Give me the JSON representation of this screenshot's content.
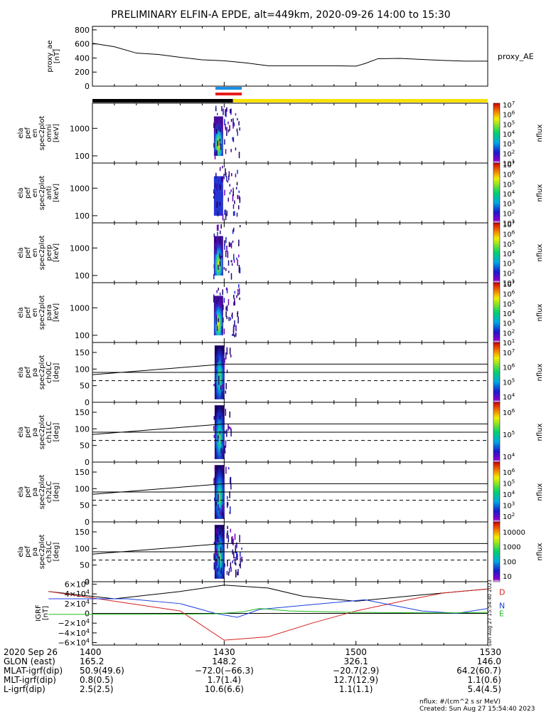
{
  "title": "PRELIMINARY ELFIN-A EPDE, alt=449km, 2020-09-26 14:00 to 15:30",
  "colors": {
    "orbit_bar_night": "#000000",
    "orbit_bar_day": "#f7e00a",
    "ibo_bar": "#e81c1c",
    "fast_bar": "#1b8fe8",
    "ae_line": "#000000",
    "grf_d": "#000000",
    "grf_n": "#1a3fe0",
    "grf_e": "#22bb22",
    "grf_r": "#d42020",
    "d_label": "#d42020",
    "n_label": "#1a3fe0",
    "e_label": "#22bb22"
  },
  "chart_data": [
    {
      "type": "line",
      "name": "proxy_ae",
      "ylabel": [
        "proxy_ae",
        "[nT]"
      ],
      "series_label": "proxy_AE",
      "ylim": [
        0,
        850
      ],
      "yticks": [
        "0",
        "200",
        "400",
        "600",
        "800"
      ],
      "ytick_values": [
        0,
        200,
        400,
        600,
        800
      ],
      "x": [
        0,
        5,
        10,
        15,
        20,
        25,
        30,
        35,
        40,
        45,
        50,
        55,
        60,
        62,
        65,
        70,
        75,
        80,
        85,
        90
      ],
      "values": [
        610,
        560,
        470,
        450,
        410,
        375,
        360,
        330,
        290,
        290,
        290,
        290,
        285,
        320,
        390,
        395,
        380,
        365,
        355,
        355
      ]
    },
    {
      "type": "heatmap",
      "name": "spec2plot_omni",
      "ylabel": [
        "ela",
        "pef",
        "en",
        "spec2plot",
        "omni",
        "[keV]"
      ],
      "yticks": [
        "1000",
        "100"
      ],
      "zlabel": "nflux",
      "ztick_exponents": [
        "1",
        "2",
        "3",
        "4",
        "5",
        "6",
        "7"
      ]
    },
    {
      "type": "heatmap",
      "name": "spec2plot_anti",
      "ylabel": [
        "ela",
        "pef",
        "en",
        "spec2plot",
        "anti",
        "[keV]"
      ],
      "yticks": [
        "1000",
        "100"
      ],
      "zlabel": "nflux",
      "ztick_exponents": [
        "1",
        "2",
        "3",
        "4",
        "5",
        "6",
        "7"
      ]
    },
    {
      "type": "heatmap",
      "name": "spec2plot_perp",
      "ylabel": [
        "ela",
        "pef",
        "en",
        "spec2plot",
        "perp",
        "[keV]"
      ],
      "yticks": [
        "1000",
        "100"
      ],
      "zlabel": "nflux",
      "ztick_exponents": [
        "1",
        "2",
        "3",
        "4",
        "5",
        "6",
        "7"
      ]
    },
    {
      "type": "heatmap",
      "name": "spec2plot_para",
      "ylabel": [
        "ela",
        "pef",
        "en",
        "spec2plot",
        "para",
        "[keV]"
      ],
      "yticks": [
        "1000",
        "100"
      ],
      "zlabel": "nflux",
      "ztick_exponents": [
        "1",
        "2",
        "3",
        "4",
        "5",
        "6",
        "7"
      ]
    },
    {
      "type": "heatmap",
      "name": "spec2plot_ch0LC",
      "ylabel": [
        "ela",
        "pef",
        "pa",
        "spec2plot",
        "ch0LC",
        "[deg]"
      ],
      "yticks": [
        "0",
        "50",
        "100",
        "150"
      ],
      "ylim": [
        0,
        180
      ],
      "zlabel": "nflux",
      "ztick_labels": [
        "10^4",
        "10^5",
        "10^6",
        "10^7"
      ]
    },
    {
      "type": "heatmap",
      "name": "spec2plot_ch1LC",
      "ylabel": [
        "ela",
        "pef",
        "pa",
        "spec2plot",
        "ch1LC",
        "[deg]"
      ],
      "yticks": [
        "0",
        "50",
        "100",
        "150"
      ],
      "ylim": [
        0,
        180
      ],
      "zlabel": "nflux",
      "ztick_labels": [
        "10^4",
        "10^5",
        "10^6"
      ]
    },
    {
      "type": "heatmap",
      "name": "spec2plot_ch2LC",
      "ylabel": [
        "ela",
        "pef",
        "pa",
        "spec2plot",
        "ch2LC",
        "[deg]"
      ],
      "yticks": [
        "0",
        "50",
        "100",
        "150"
      ],
      "ylim": [
        0,
        180
      ],
      "zlabel": "nflux",
      "ztick_labels": [
        "10^2",
        "10^3",
        "10^4",
        "10^5",
        "10^6"
      ]
    },
    {
      "type": "heatmap",
      "name": "spec2plot_ch3LC",
      "ylabel": [
        "ela",
        "pef",
        "pa",
        "spec2plot",
        "ch3LC",
        "[deg]"
      ],
      "yticks": [
        "0",
        "50",
        "100",
        "150"
      ],
      "ylim": [
        0,
        180
      ],
      "zlabel": "nflux",
      "ztick_labels": [
        "10",
        "100",
        "1000",
        "10000"
      ]
    },
    {
      "type": "line",
      "name": "IGRF",
      "ylabel": [
        "IGRF",
        "[nT]"
      ],
      "ylim": [
        -65000,
        65000
      ],
      "yticks": [
        "6×10⁴",
        "4×10⁴",
        "2×10⁴",
        "0",
        "−2×10⁴",
        "−4×10⁴",
        "−6×10⁴"
      ],
      "legend": [
        "D",
        "N",
        "E"
      ],
      "sidebar_text": "Sun Aug 27 15:54:40 2023"
    }
  ],
  "time_axis": {
    "row_labels": [
      "2020 Sep 26",
      "GLON (east)",
      "MLAT-igrf(dip)",
      "MLT-igrf(dip)",
      "L-igrf(dip)"
    ],
    "columns": [
      {
        "values": [
          "1400",
          "165.2",
          "50.9(49.6)",
          "0.8(0.5)",
          "2.5(2.5)"
        ]
      },
      {
        "values": [
          "1430",
          "148.2",
          "−72.0(−66.3)",
          "1.7(1.4)",
          "10.6(6.6)"
        ]
      },
      {
        "values": [
          "1500",
          "326.1",
          "−20.7(2.9)",
          "12.7(12.9)",
          "1.1(1.1)"
        ]
      },
      {
        "values": [
          "1530",
          "146.0",
          "64.2(60.7)",
          "1.1(0.6)",
          "5.4(4.5)"
        ]
      }
    ]
  },
  "footer": {
    "units": "nflux: #/(cm^2 s sr MeV)",
    "created": "Created: Sun Aug 27 15:54:40 2023"
  }
}
